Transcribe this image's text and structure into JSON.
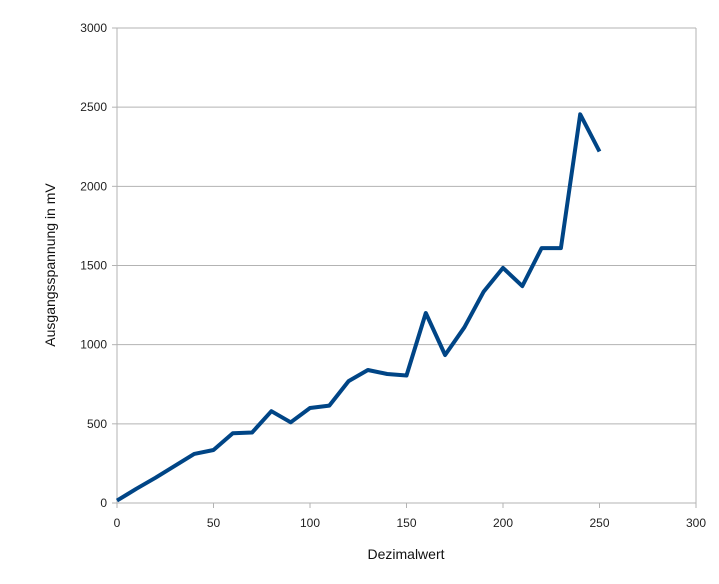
{
  "chart_data": {
    "type": "line",
    "xlabel": "Dezimalwert",
    "ylabel": "Ausgangsspannung in mV",
    "xlim": [
      0,
      300
    ],
    "ylim": [
      0,
      3000
    ],
    "x_ticks": [
      "0",
      "50",
      "100",
      "150",
      "200",
      "250",
      "300"
    ],
    "y_ticks": [
      "0",
      "500",
      "1000",
      "1500",
      "2000",
      "2500",
      "3000"
    ],
    "grid": "horizontal",
    "series": [
      {
        "color": "#004586",
        "x": [
          0,
          10,
          20,
          30,
          40,
          50,
          60,
          70,
          80,
          90,
          100,
          110,
          120,
          130,
          140,
          150,
          160,
          170,
          180,
          190,
          200,
          210,
          220,
          230,
          240,
          250
        ],
        "y": [
          15,
          90,
          160,
          235,
          310,
          335,
          440,
          445,
          580,
          510,
          600,
          615,
          770,
          840,
          815,
          805,
          1200,
          935,
          1110,
          1335,
          1485,
          1370,
          1610,
          1610,
          2455,
          2220
        ]
      }
    ]
  }
}
